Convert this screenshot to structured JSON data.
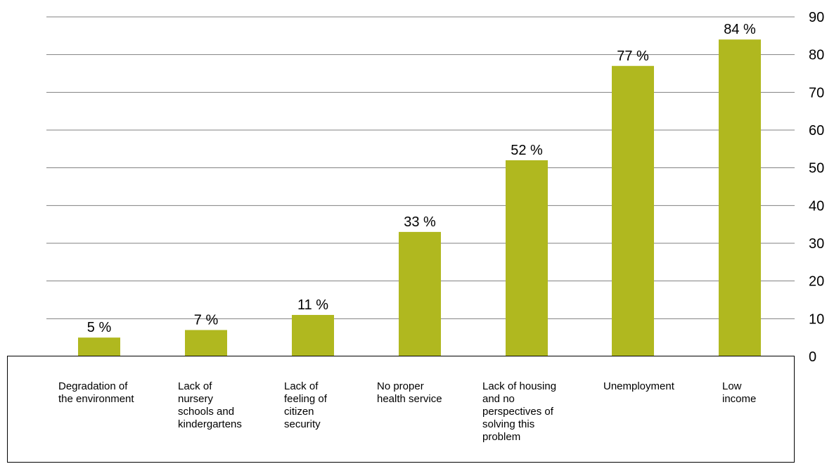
{
  "chart_data": {
    "type": "bar",
    "categories": [
      "Degradation of\nthe environment",
      "Lack of\nnursery\nschools and\nkindergartens",
      "Lack of\nfeeling of\ncitizen\nsecurity",
      "No proper\nhealth service",
      "Lack of housing\nand no\nperspectives of\nsolving this\nproblem",
      "Unemployment",
      "Low\nincome"
    ],
    "values": [
      5,
      7,
      11,
      33,
      52,
      77,
      84
    ],
    "data_labels": [
      "5 %",
      "7 %",
      "11 %",
      "33 %",
      "52 %",
      "77 %",
      "84 %"
    ],
    "ylim": [
      0,
      90
    ],
    "yticks": [
      "0",
      "10",
      "20",
      "30",
      "40",
      "50",
      "60",
      "70",
      "80",
      "90"
    ],
    "y_axis_position": "right",
    "grid": true,
    "bar_color": "#b0b81f",
    "grid_color": "#808080"
  }
}
